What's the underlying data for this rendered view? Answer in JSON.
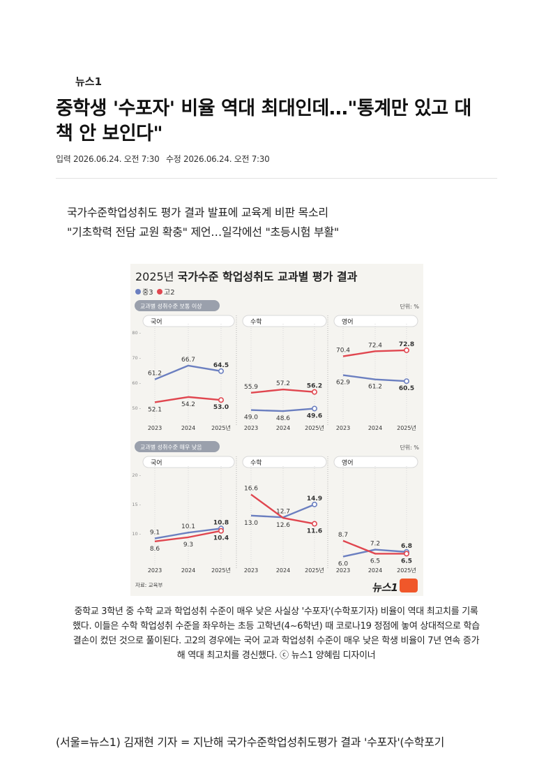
{
  "article": {
    "press": "뉴스1",
    "headline_line1": "중학생 '수포자' 비율 역대 최대인데…\"통계만 있고 대",
    "headline_line2": "책 안 보인다\"",
    "published": "입력 2026.06.24. 오전 7:30",
    "modified": "수정 2026.06.24. 오전 7:30",
    "summary_line1": "국가수준학업성취도 평가 결과 발표에 교육계 비판 목소리",
    "summary_line2": "\"기초학력 전담 교원 확충\" 제언…일각에선 \"초등시험 부활\"",
    "caption": "중학교 3학년 중 수학 교과 학업성취 수준이 매우 낮은 사실상 '수포자'(수학포기자) 비율이 역대 최고치를 기록했다. 이들은 수학 학업성취 수준을 좌우하는 초등 고학년(4~6학년) 때 코로나19 정점에 놓여 상대적으로 학습 결손이 컸던 것으로 풀이된다. 고2의 경우에는 국어 교과 학업성취 수준이 매우 낮은 학생 비율이 7년 연속 증가해 역대 최고치를 경신했다. ⓒ 뉴스1 양혜림 디자이너",
    "body_first_line": "(서울=뉴스1) 김재현 기자 = 지난해 국가수준학업성취도평가 결과 '수포자'(수학포기"
  },
  "infographic": {
    "title_year": "2025년",
    "title_rest": "국가수준 학업성취도 교과별 평가 결과",
    "legend": [
      "중3",
      "고2"
    ],
    "unit": "단위: %",
    "source": "자료: 교육부",
    "logo": "뉴스1"
  },
  "colors": {
    "series1": "#6b7fc0",
    "series2": "#e0464f",
    "header_pill": "#9aa0ac"
  },
  "chart_data": [
    {
      "type": "line",
      "title": "교과별 성취수준 보통 이상",
      "x": [
        "2023",
        "2024",
        "2025년"
      ],
      "ylim": [
        45,
        80
      ],
      "yticks": [
        50,
        60,
        70,
        80
      ],
      "panels": [
        {
          "subject": "국어",
          "series": [
            {
              "name": "중3",
              "values": [
                61.2,
                66.7,
                64.5
              ]
            },
            {
              "name": "고2",
              "values": [
                52.1,
                54.2,
                53.0
              ]
            }
          ]
        },
        {
          "subject": "수학",
          "series": [
            {
              "name": "중3",
              "values": [
                49.0,
                48.6,
                49.6
              ]
            },
            {
              "name": "고2",
              "values": [
                55.9,
                57.2,
                56.2
              ]
            }
          ]
        },
        {
          "subject": "영어",
          "series": [
            {
              "name": "중3",
              "values": [
                62.9,
                61.2,
                60.5
              ]
            },
            {
              "name": "고2",
              "values": [
                70.4,
                72.4,
                72.8
              ]
            }
          ]
        }
      ]
    },
    {
      "type": "line",
      "title": "교과별 성취수준 매우 낮음",
      "x": [
        "2023",
        "2024",
        "2025년"
      ],
      "ylim": [
        5,
        20
      ],
      "yticks": [
        10,
        15,
        20
      ],
      "panels": [
        {
          "subject": "국어",
          "series": [
            {
              "name": "중3",
              "values": [
                9.1,
                10.1,
                10.8
              ]
            },
            {
              "name": "고2",
              "values": [
                8.6,
                9.3,
                10.4
              ]
            }
          ]
        },
        {
          "subject": "수학",
          "series": [
            {
              "name": "중3",
              "values": [
                13.0,
                12.7,
                14.9
              ]
            },
            {
              "name": "고2",
              "values": [
                16.6,
                12.6,
                11.6
              ]
            }
          ]
        },
        {
          "subject": "영어",
          "series": [
            {
              "name": "중3",
              "values": [
                6.0,
                7.2,
                6.8
              ]
            },
            {
              "name": "고2",
              "values": [
                8.7,
                6.5,
                6.5
              ]
            }
          ]
        }
      ]
    }
  ]
}
